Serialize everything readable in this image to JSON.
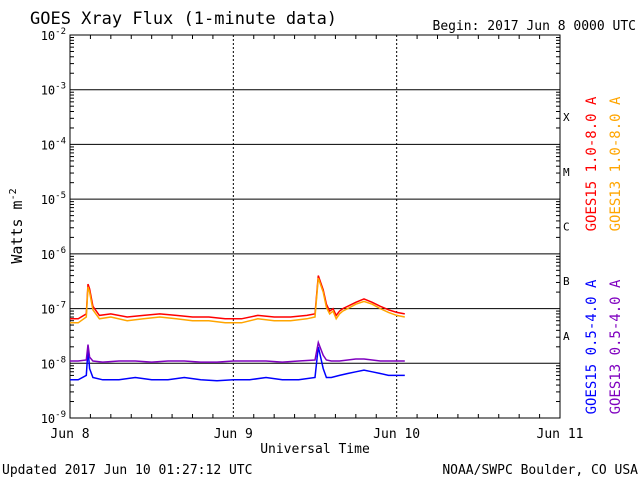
{
  "header": {
    "title": "GOES Xray Flux (1-minute data)",
    "begin": "Begin:  2017 Jun 8 0000 UTC"
  },
  "footer": {
    "updated": "Updated 2017 Jun 10 01:27:12 UTC",
    "credit": "NOAA/SWPC Boulder, CO USA"
  },
  "chart_data": {
    "type": "line",
    "ylabel": "Watts m",
    "ylabel_sup": "-2",
    "xlabel": "Universal Time",
    "y_scale": "log",
    "ylim": [
      1e-09,
      0.01
    ],
    "y_ticks": [
      {
        "value": 1e-09,
        "base": "10",
        "exp": "-9"
      },
      {
        "value": 1e-08,
        "base": "10",
        "exp": "-8"
      },
      {
        "value": 1e-07,
        "base": "10",
        "exp": "-7"
      },
      {
        "value": 1e-06,
        "base": "10",
        "exp": "-6"
      },
      {
        "value": 1e-05,
        "base": "10",
        "exp": "-5"
      },
      {
        "value": 0.0001,
        "base": "10",
        "exp": "-4"
      },
      {
        "value": 0.001,
        "base": "10",
        "exp": "-3"
      },
      {
        "value": 0.01,
        "base": "10",
        "exp": "-2"
      }
    ],
    "x_range_days": [
      0,
      3
    ],
    "x_ticks": [
      {
        "day": 0,
        "label": "Jun 8"
      },
      {
        "day": 1,
        "label": "Jun 9"
      },
      {
        "day": 2,
        "label": "Jun 10"
      },
      {
        "day": 3,
        "label": "Jun 11"
      }
    ],
    "flare_classes": [
      {
        "label": "A",
        "low": 1e-08,
        "high": 1e-07
      },
      {
        "label": "B",
        "low": 1e-07,
        "high": 1e-06
      },
      {
        "label": "C",
        "low": 1e-06,
        "high": 1e-05
      },
      {
        "label": "M",
        "low": 1e-05,
        "high": 0.0001
      },
      {
        "label": "X",
        "low": 0.0001,
        "high": 0.001
      }
    ],
    "legend": [
      {
        "text": "GOES15 1.0-8.0 A",
        "color": "#ff0000"
      },
      {
        "text": "GOES13 1.0-8.0 A",
        "color": "#ffa500"
      },
      {
        "text": "GOES15 0.5-4.0 A",
        "color": "#0000ff"
      },
      {
        "text": "GOES13 0.5-4.0 A",
        "color": "#7f00bf"
      }
    ],
    "series": [
      {
        "name": "GOES15 1.0-8.0 A",
        "color": "#ff0000",
        "x": [
          0,
          0.05,
          0.1,
          0.11,
          0.12,
          0.14,
          0.18,
          0.25,
          0.35,
          0.45,
          0.55,
          0.65,
          0.75,
          0.85,
          0.95,
          1.05,
          1.15,
          1.25,
          1.35,
          1.45,
          1.5,
          1.52,
          1.55,
          1.57,
          1.59,
          1.61,
          1.63,
          1.65,
          1.67,
          1.7,
          1.75,
          1.8,
          1.85,
          1.9,
          1.95,
          2.0,
          2.05
        ],
        "y": [
          6.5e-08,
          6.5e-08,
          8e-08,
          2.8e-07,
          2.3e-07,
          1.1e-07,
          7.5e-08,
          8e-08,
          7e-08,
          7.5e-08,
          8e-08,
          7.5e-08,
          7e-08,
          7e-08,
          6.5e-08,
          6.5e-08,
          7.5e-08,
          7e-08,
          7e-08,
          7.5e-08,
          8e-08,
          4e-07,
          2.2e-07,
          1.2e-07,
          9e-08,
          1e-07,
          7.5e-08,
          9e-08,
          1e-07,
          1.1e-07,
          1.3e-07,
          1.5e-07,
          1.3e-07,
          1.1e-07,
          9.5e-08,
          8.5e-08,
          8e-08
        ]
      },
      {
        "name": "GOES13 1.0-8.0 A",
        "color": "#ffa500",
        "x": [
          0,
          0.05,
          0.1,
          0.11,
          0.12,
          0.14,
          0.18,
          0.25,
          0.35,
          0.45,
          0.55,
          0.65,
          0.75,
          0.85,
          0.95,
          1.05,
          1.15,
          1.25,
          1.35,
          1.45,
          1.5,
          1.52,
          1.55,
          1.57,
          1.59,
          1.61,
          1.63,
          1.65,
          1.67,
          1.7,
          1.75,
          1.8,
          1.85,
          1.9,
          1.95,
          2.0,
          2.05
        ],
        "y": [
          5.5e-08,
          5.5e-08,
          7e-08,
          2.5e-07,
          2e-07,
          9.5e-08,
          6.5e-08,
          7e-08,
          6e-08,
          6.5e-08,
          7e-08,
          6.5e-08,
          6e-08,
          6e-08,
          5.5e-08,
          5.5e-08,
          6.5e-08,
          6e-08,
          6e-08,
          6.5e-08,
          7e-08,
          3.6e-07,
          2e-07,
          1.05e-07,
          8e-08,
          9e-08,
          6.5e-08,
          8e-08,
          9e-08,
          1e-07,
          1.2e-07,
          1.35e-07,
          1.2e-07,
          1e-07,
          8.5e-08,
          7.5e-08,
          7e-08
        ]
      },
      {
        "name": "GOES15 0.5-4.0 A",
        "color": "#0000ff",
        "x": [
          0,
          0.05,
          0.1,
          0.11,
          0.12,
          0.14,
          0.2,
          0.3,
          0.4,
          0.5,
          0.6,
          0.7,
          0.8,
          0.9,
          1.0,
          1.1,
          1.2,
          1.3,
          1.4,
          1.5,
          1.52,
          1.55,
          1.57,
          1.6,
          1.65,
          1.7,
          1.75,
          1.8,
          1.85,
          1.9,
          1.95,
          2.0,
          2.05
        ],
        "y": [
          5e-09,
          5e-09,
          6e-09,
          1.8e-08,
          8e-09,
          5.5e-09,
          5e-09,
          5e-09,
          5.5e-09,
          5e-09,
          5e-09,
          5.5e-09,
          5e-09,
          4.8e-09,
          5e-09,
          5e-09,
          5.5e-09,
          5e-09,
          5e-09,
          5.5e-09,
          2e-08,
          8e-09,
          5.5e-09,
          5.5e-09,
          6e-09,
          6.5e-09,
          7e-09,
          7.5e-09,
          7e-09,
          6.5e-09,
          6e-09,
          6e-09,
          6e-09
        ]
      },
      {
        "name": "GOES13 0.5-4.0 A",
        "color": "#7f00bf",
        "x": [
          0,
          0.05,
          0.1,
          0.11,
          0.12,
          0.14,
          0.2,
          0.3,
          0.4,
          0.5,
          0.6,
          0.7,
          0.8,
          0.9,
          1.0,
          1.1,
          1.2,
          1.3,
          1.4,
          1.5,
          1.52,
          1.55,
          1.57,
          1.6,
          1.65,
          1.7,
          1.75,
          1.8,
          1.85,
          1.9,
          1.95,
          2.0,
          2.05
        ],
        "y": [
          1.1e-08,
          1.1e-08,
          1.15e-08,
          2.2e-08,
          1.3e-08,
          1.1e-08,
          1.05e-08,
          1.1e-08,
          1.1e-08,
          1.05e-08,
          1.1e-08,
          1.1e-08,
          1.05e-08,
          1.05e-08,
          1.1e-08,
          1.1e-08,
          1.1e-08,
          1.05e-08,
          1.1e-08,
          1.15e-08,
          2.4e-08,
          1.4e-08,
          1.15e-08,
          1.1e-08,
          1.1e-08,
          1.15e-08,
          1.2e-08,
          1.2e-08,
          1.15e-08,
          1.1e-08,
          1.1e-08,
          1.1e-08,
          1.1e-08
        ]
      }
    ]
  }
}
